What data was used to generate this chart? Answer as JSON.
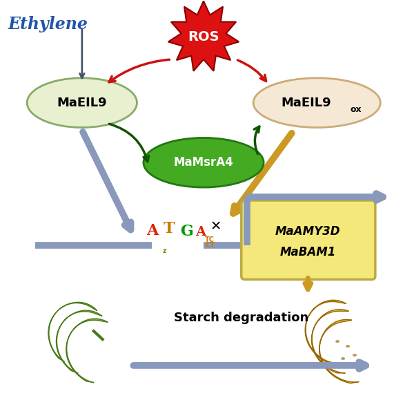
{
  "fig_width": 6.0,
  "fig_height": 5.89,
  "dpi": 100,
  "bg_color": "#ffffff",
  "ethylene_text": "Ethylene",
  "ethylene_color": "#2255aa",
  "ros_text": "ROS",
  "ros_color": "#dd0000",
  "maeil9_text": "MaEIL9",
  "maeil9_fill": "#e8f0d0",
  "maeil9_edge": "#88aa66",
  "maeil9ox_text_main": "MaEIL9",
  "maeil9ox_text_sub": "ox",
  "maeil9ox_fill": "#f5e8d5",
  "maeil9ox_edge": "#ccaa77",
  "mamsra4_text": "MaMsrA4",
  "mamsra4_fill": "#44aa22",
  "mamsra4_edge": "#227711",
  "gene_box_text1": "MaAMY3D",
  "gene_box_text2": "MaBAM1",
  "gene_box_fill": "#f5e87a",
  "gene_box_edge": "#bbaa44",
  "starch_text": "Starch degradation",
  "arrow_blue": "#8899bb",
  "arrow_gold": "#cc9922",
  "arrow_red": "#cc1111",
  "arrow_green": "#115500"
}
